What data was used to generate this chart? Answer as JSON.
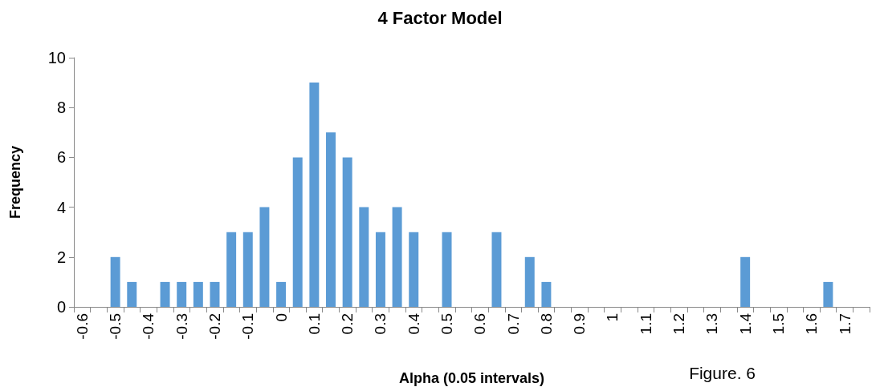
{
  "chart_data": {
    "type": "bar",
    "title": "4 Factor Model",
    "xlabel": "Alpha (0.05 intervals)",
    "ylabel": "Frequency",
    "annotations": [
      "Figure. 6"
    ],
    "categories": [
      "-0.6",
      null,
      "-0.5",
      null,
      "-0.4",
      null,
      "-0.3",
      null,
      "-0.2",
      null,
      "-0.1",
      null,
      "0",
      null,
      "0.1",
      null,
      "0.2",
      null,
      "0.3",
      null,
      "0.4",
      null,
      "0.5",
      null,
      "0.6",
      null,
      "0.7",
      null,
      "0.8",
      null,
      "0.9",
      null,
      "1",
      null,
      "1.1",
      null,
      "1.2",
      null,
      "1.3",
      null,
      "1.4",
      null,
      "1.5",
      null,
      "1.6",
      null,
      "1.7",
      null
    ],
    "values": [
      0,
      0,
      2,
      1,
      0,
      1,
      1,
      1,
      1,
      3,
      3,
      4,
      1,
      6,
      9,
      7,
      6,
      4,
      3,
      4,
      3,
      0,
      3,
      0,
      0,
      3,
      0,
      2,
      1,
      0,
      0,
      0,
      0,
      0,
      0,
      0,
      0,
      0,
      0,
      0,
      2,
      0,
      0,
      0,
      0,
      1,
      0,
      0
    ],
    "color": "#5b9bd5",
    "ylim": [
      0,
      10
    ],
    "yticks": [
      0,
      2,
      4,
      6,
      8,
      10
    ],
    "grid": false
  }
}
